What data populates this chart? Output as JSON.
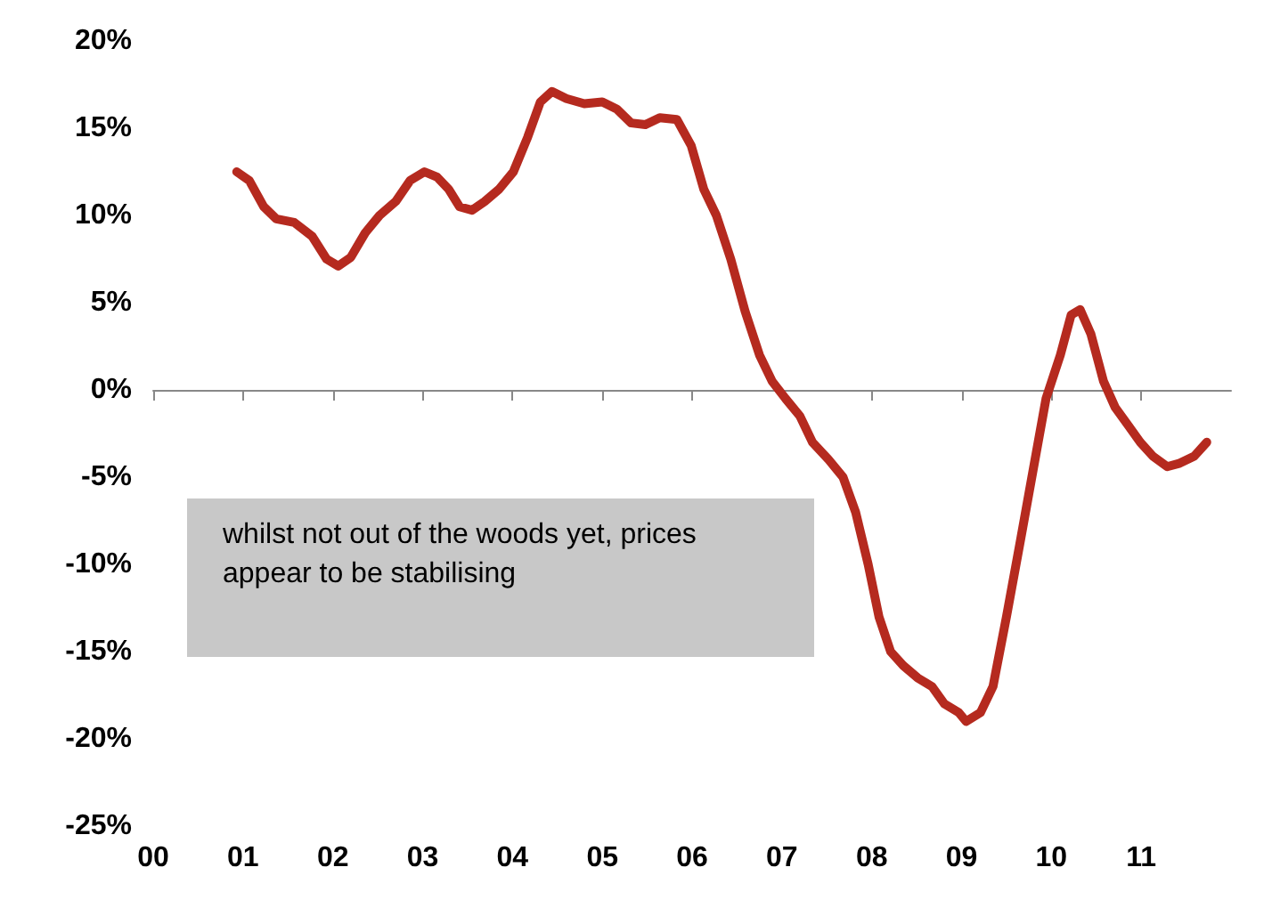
{
  "chart_data": {
    "type": "line",
    "x": [
      2000.93,
      2001.07,
      2001.23,
      2001.37,
      2001.57,
      2001.77,
      2001.93,
      2002.06,
      2002.2,
      2002.36,
      2002.52,
      2002.7,
      2002.86,
      2003.02,
      2003.16,
      2003.29,
      2003.41,
      2003.55,
      2003.69,
      2003.85,
      2004.01,
      2004.17,
      2004.31,
      2004.44,
      2004.6,
      2004.8,
      2005.0,
      2005.16,
      2005.32,
      2005.48,
      2005.64,
      2005.83,
      2005.99,
      2006.13,
      2006.27,
      2006.43,
      2006.59,
      2006.75,
      2006.89,
      2007.04,
      2007.2,
      2007.34,
      2007.52,
      2007.68,
      2007.82,
      2007.96,
      2008.08,
      2008.21,
      2008.35,
      2008.51,
      2008.67,
      2008.81,
      2008.97,
      2009.05,
      2009.21,
      2009.35,
      2009.5,
      2009.66,
      2009.8,
      2009.94,
      2010.1,
      2010.22,
      2010.32,
      2010.44,
      2010.58,
      2010.71,
      2010.85,
      2010.99,
      2011.13,
      2011.29,
      2011.43,
      2011.59,
      2011.73
    ],
    "series": [
      {
        "color": "#b52a1f",
        "values": [
          12.5,
          12.0,
          10.5,
          9.8,
          9.6,
          8.8,
          7.5,
          7.1,
          7.6,
          9.0,
          10.0,
          10.8,
          12.0,
          12.5,
          12.2,
          11.5,
          10.5,
          10.3,
          10.8,
          11.5,
          12.5,
          14.5,
          16.5,
          17.1,
          16.7,
          16.4,
          16.5,
          16.1,
          15.3,
          15.2,
          15.6,
          15.5,
          14.0,
          11.5,
          10.0,
          7.5,
          4.5,
          2.0,
          0.5,
          -0.5,
          -1.5,
          -3.0,
          -4.0,
          -5.0,
          -7.0,
          -10.0,
          -13.0,
          -15.0,
          -15.8,
          -16.5,
          -17.0,
          -18.0,
          -18.5,
          -19.0,
          -18.5,
          -17.0,
          -13.0,
          -8.5,
          -4.5,
          -0.5,
          2.0,
          4.3,
          4.6,
          3.2,
          0.5,
          -1.0,
          -2.0,
          -3.0,
          -3.8,
          -4.4,
          -4.2,
          -3.8,
          -3.0
        ]
      }
    ],
    "xlim": [
      2000,
      2012
    ],
    "xticks": [
      {
        "value": 2000,
        "label": "00"
      },
      {
        "value": 2001,
        "label": "01"
      },
      {
        "value": 2002,
        "label": "02"
      },
      {
        "value": 2003,
        "label": "03"
      },
      {
        "value": 2004,
        "label": "04"
      },
      {
        "value": 2005,
        "label": "05"
      },
      {
        "value": 2006,
        "label": "06"
      },
      {
        "value": 2007,
        "label": "07"
      },
      {
        "value": 2008,
        "label": "08"
      },
      {
        "value": 2009,
        "label": "09"
      },
      {
        "value": 2010,
        "label": "10"
      },
      {
        "value": 2011,
        "label": "11"
      }
    ],
    "ylim": [
      -25,
      20
    ],
    "yticks": [
      {
        "value": -25,
        "label": "-25%"
      },
      {
        "value": -20,
        "label": "-20%"
      },
      {
        "value": -15,
        "label": "-15%"
      },
      {
        "value": -10,
        "label": "-10%"
      },
      {
        "value": -5,
        "label": "-5%"
      },
      {
        "value": 0,
        "label": "0%"
      },
      {
        "value": 5,
        "label": "5%"
      },
      {
        "value": 10,
        "label": "10%"
      },
      {
        "value": 15,
        "label": "15%"
      },
      {
        "value": 20,
        "label": "20%"
      }
    ],
    "annotations": [
      "whilst not out of the woods yet, prices appear to be stabilising"
    ],
    "marker": "none",
    "line_style": "solid"
  }
}
